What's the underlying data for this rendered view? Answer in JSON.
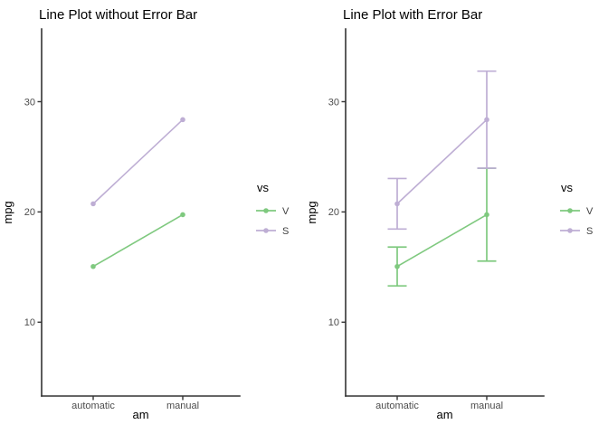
{
  "figure": {
    "background": "#ffffff",
    "axis_color": "#333333",
    "tick_text_color": "#4d4d4d"
  },
  "chart_data": [
    {
      "type": "line",
      "title": "Line Plot without Error Bar",
      "xlabel": "am",
      "ylabel": "mpg",
      "categories": [
        "automatic",
        "manual"
      ],
      "yticks": [
        10,
        20,
        30
      ],
      "ylim": [
        3.3,
        36.6
      ],
      "grid": false,
      "legend_title": "vs",
      "legend_position": "right",
      "error_bars": false,
      "series": [
        {
          "name": "V",
          "color": "#7fc97f",
          "values": [
            15.05,
            19.75
          ]
        },
        {
          "name": "S",
          "color": "#beaed4",
          "values": [
            20.74,
            28.37
          ]
        }
      ]
    },
    {
      "type": "line",
      "title": "Line Plot with Error Bar",
      "xlabel": "am",
      "ylabel": "mpg",
      "categories": [
        "automatic",
        "manual"
      ],
      "yticks": [
        10,
        20,
        30
      ],
      "ylim": [
        3.3,
        36.6
      ],
      "grid": false,
      "legend_title": "vs",
      "legend_position": "right",
      "error_bars": true,
      "series": [
        {
          "name": "V",
          "color": "#7fc97f",
          "values": [
            15.05,
            19.75
          ],
          "lower": [
            13.29,
            15.54
          ],
          "upper": [
            16.81,
            23.96
          ]
        },
        {
          "name": "S",
          "color": "#beaed4",
          "values": [
            20.74,
            28.37
          ],
          "lower": [
            18.45,
            23.97
          ],
          "upper": [
            23.03,
            32.77
          ]
        }
      ]
    }
  ]
}
